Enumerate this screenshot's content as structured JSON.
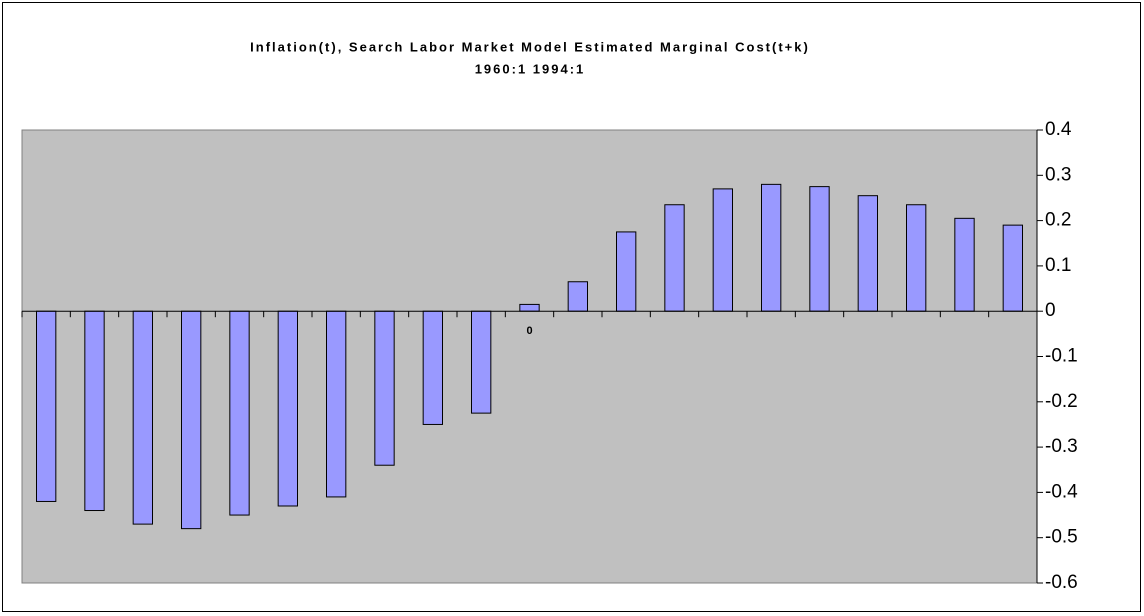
{
  "chart_data": {
    "type": "bar",
    "title": "Inflation(t), Search Labor Market Model Estimated Marginal Cost(t+k)",
    "subtitle": "1960:1 1994:1",
    "categories": [
      null,
      null,
      null,
      null,
      null,
      null,
      null,
      null,
      null,
      null,
      "0",
      null,
      null,
      null,
      null,
      null,
      null,
      null,
      null,
      null,
      null
    ],
    "values": [
      -0.42,
      -0.44,
      -0.47,
      -0.48,
      -0.45,
      -0.43,
      -0.41,
      -0.34,
      -0.25,
      -0.225,
      0.015,
      0.065,
      0.175,
      0.235,
      0.27,
      0.28,
      0.275,
      0.255,
      0.235,
      0.205,
      0.19
    ],
    "color": "#9999ff",
    "ylim": [
      -0.6,
      0.4
    ],
    "yticks": [
      -0.6,
      -0.5,
      -0.4,
      -0.3,
      -0.2,
      -0.1,
      0,
      0.1,
      0.2,
      0.3,
      0.4
    ],
    "grid": false
  }
}
